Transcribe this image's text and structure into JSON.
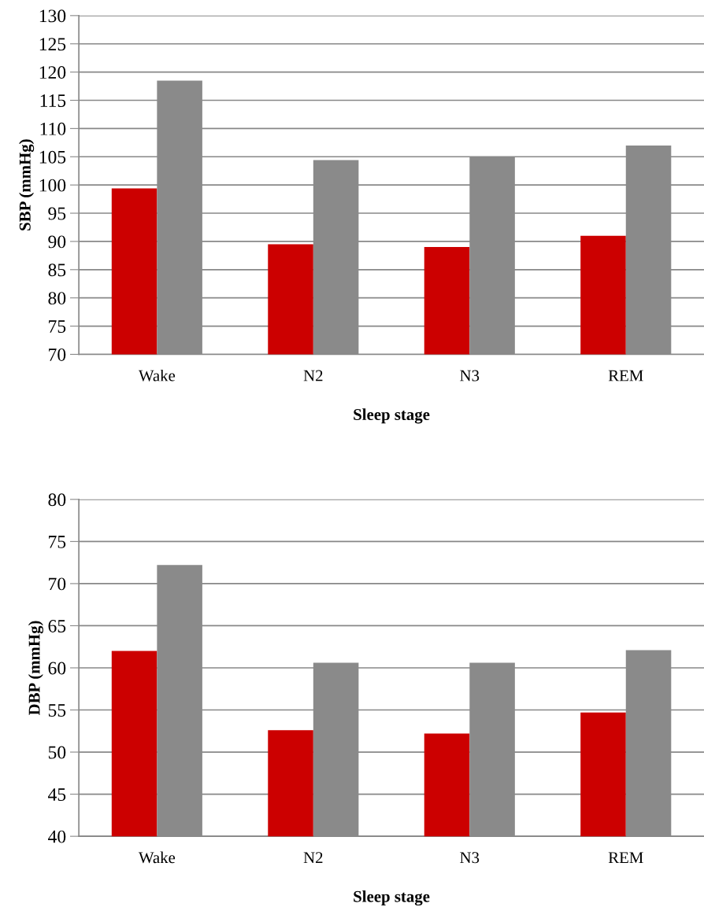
{
  "chart_data": [
    {
      "type": "bar",
      "xlabel": "Sleep stage",
      "ylabel": "SBP (mmHg)",
      "categories": [
        "Wake",
        "N2",
        "N3",
        "REM"
      ],
      "series": [
        {
          "color": "#cc0000",
          "values": [
            99.4,
            89.5,
            89.0,
            91.0
          ]
        },
        {
          "color": "#8a8a8a",
          "values": [
            118.5,
            104.4,
            105.0,
            107.0
          ]
        }
      ],
      "ylim": [
        70,
        130
      ],
      "yticks": [
        70,
        75,
        80,
        85,
        90,
        95,
        100,
        105,
        110,
        115,
        120,
        125,
        130
      ],
      "grid": "y",
      "legend": false
    },
    {
      "type": "bar",
      "xlabel": "Sleep stage",
      "ylabel": "DBP (mmHg)",
      "categories": [
        "Wake",
        "N2",
        "N3",
        "REM"
      ],
      "series": [
        {
          "color": "#cc0000",
          "values": [
            62.0,
            52.6,
            52.2,
            54.7
          ]
        },
        {
          "color": "#8a8a8a",
          "values": [
            72.2,
            60.6,
            60.6,
            62.1
          ]
        }
      ],
      "ylim": [
        40,
        80
      ],
      "yticks": [
        40,
        45,
        50,
        55,
        60,
        65,
        70,
        75,
        80
      ],
      "grid": "y",
      "legend": false
    }
  ]
}
